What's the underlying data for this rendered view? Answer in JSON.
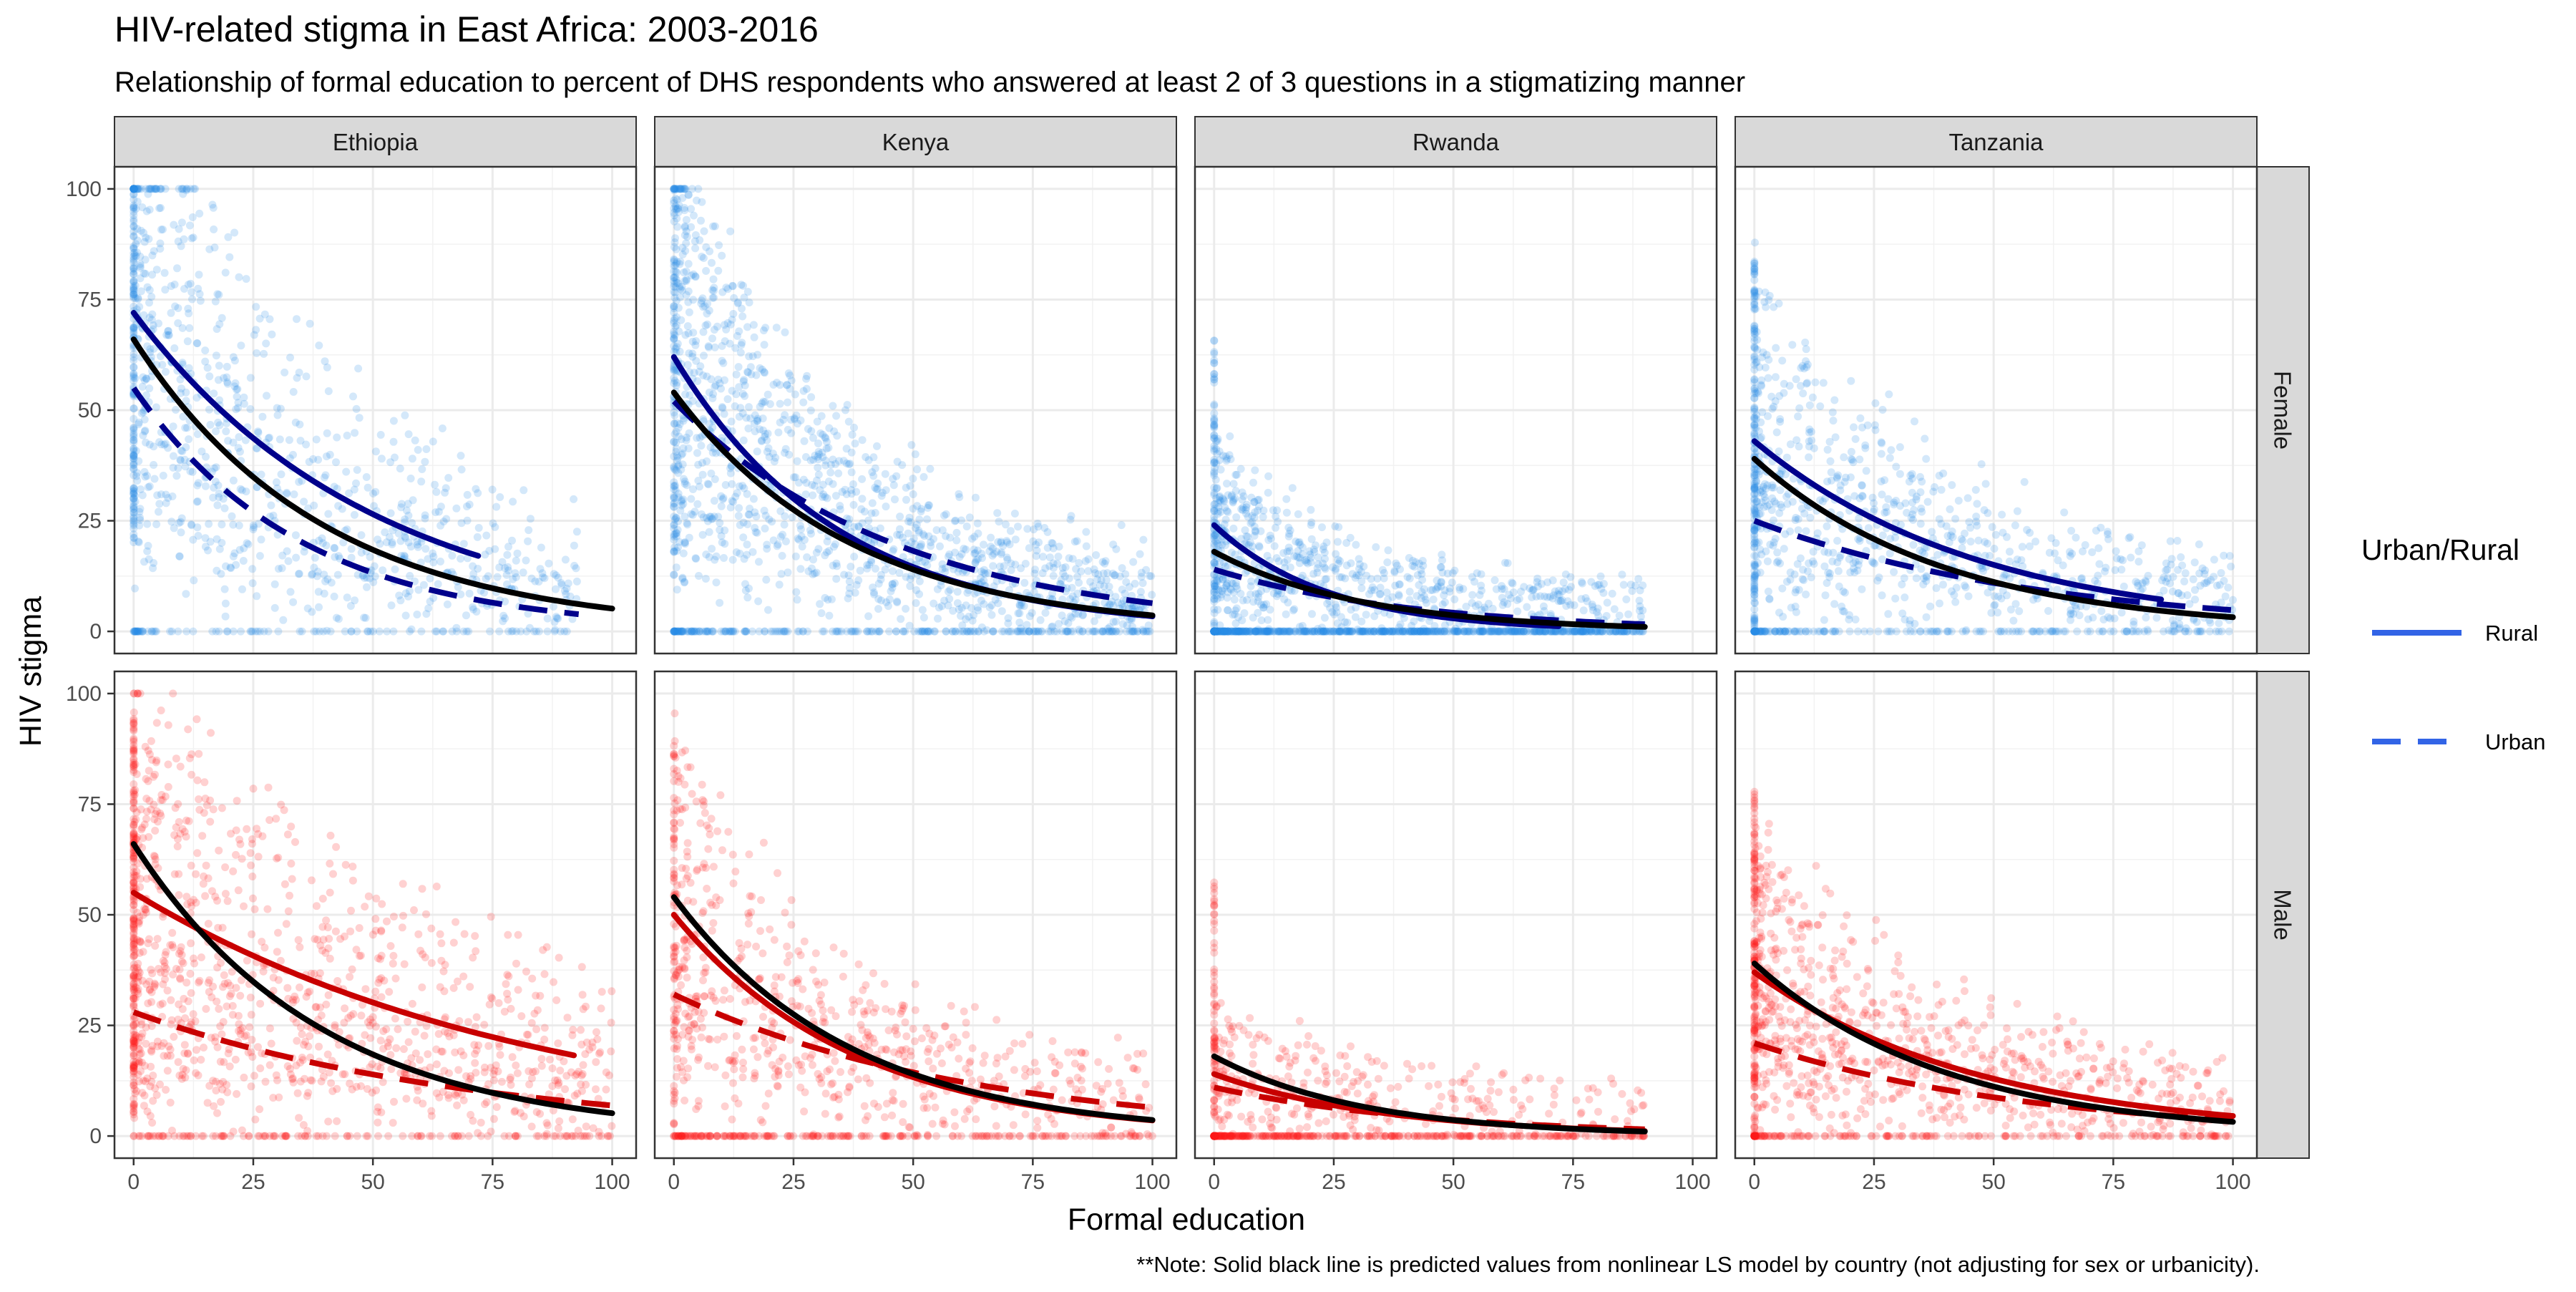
{
  "chart_data": {
    "type": "scatter",
    "title": "HIV-related stigma in East Africa: 2003-2016",
    "subtitle": "Relationship of formal education to percent of DHS respondents who answered at least 2 of 3 questions in a stigmatizing manner",
    "xlabel": "Formal education",
    "ylabel": "HIV stigma",
    "caption": "**Note: Solid black line is predicted values from nonlinear LS model by country (not adjusting for sex or urbanicity).",
    "xlim": [
      -4,
      105
    ],
    "ylim": [
      -5,
      105
    ],
    "x_ticks": [
      0,
      25,
      50,
      75,
      100
    ],
    "y_ticks": [
      0,
      25,
      50,
      75,
      100
    ],
    "grid": true,
    "columns": [
      "Ethiopia",
      "Kenya",
      "Rwanda",
      "Tanzania"
    ],
    "rows": [
      "Female",
      "Male"
    ],
    "legend": {
      "title": "Urban/Rural",
      "placement": "right",
      "entries": [
        {
          "label": "Rural",
          "linetype": "solid"
        },
        {
          "label": "Urban",
          "linetype": "dashed"
        }
      ]
    },
    "colors": {
      "female_points": "#2a8be8",
      "male_points": "#ff1a1a",
      "female_fit": "#00008b",
      "male_fit": "#c80000",
      "overall_fit": "#000000",
      "legend_line": "#3264e6",
      "strip_fill": "#d9d9d9",
      "grid": "#ebebeb",
      "border": "#333333"
    },
    "points_note": "Each dot is a survey cluster; dots are drawn in semi-transparent color and cluster heavily at education = 0 and stigma = 0.",
    "fitted_curves": {
      "Ethiopia": {
        "overall": {
          "a": 66,
          "b": 0.0255,
          "xmax": 100
        },
        "Female": {
          "Rural": {
            "a": 72,
            "b": 0.02,
            "xmax": 72
          },
          "Urban": {
            "a": 55,
            "b": 0.0285,
            "xmax": 93
          }
        },
        "Male": {
          "Rural": {
            "a": 55,
            "b": 0.012,
            "xmax": 92
          },
          "Urban": {
            "a": 28,
            "b": 0.014,
            "xmax": 100
          }
        }
      },
      "Kenya": {
        "overall": {
          "a": 54,
          "b": 0.027,
          "xmax": 100
        },
        "Female": {
          "Rural": {
            "a": 62,
            "b": 0.029,
            "xmax": 100
          },
          "Urban": {
            "a": 52,
            "b": 0.021,
            "xmax": 100
          }
        },
        "Male": {
          "Rural": {
            "a": 50,
            "b": 0.0265,
            "xmax": 100
          },
          "Urban": {
            "a": 32,
            "b": 0.016,
            "xmax": 100
          }
        }
      },
      "Rwanda": {
        "overall": {
          "a": 18,
          "b": 0.032,
          "xmax": 90
        },
        "Female": {
          "Rural": {
            "a": 24,
            "b": 0.042,
            "xmax": 72
          },
          "Urban": {
            "a": 14,
            "b": 0.024,
            "xmax": 90
          }
        },
        "Male": {
          "Rural": {
            "a": 14,
            "b": 0.028,
            "xmax": 90
          },
          "Urban": {
            "a": 11,
            "b": 0.022,
            "xmax": 90
          }
        }
      },
      "Tanzania": {
        "overall": {
          "a": 39,
          "b": 0.025,
          "xmax": 100
        },
        "Female": {
          "Rural": {
            "a": 43,
            "b": 0.021,
            "xmax": 85
          },
          "Urban": {
            "a": 25,
            "b": 0.0165,
            "xmax": 100
          }
        },
        "Male": {
          "Rural": {
            "a": 37,
            "b": 0.021,
            "xmax": 100
          },
          "Urban": {
            "a": 21,
            "b": 0.0175,
            "xmax": 100
          }
        }
      }
    },
    "point_clouds": {
      "Ethiopia": {
        "Female": {
          "n": 1100,
          "zero_x_share": 0.12,
          "zero_y_share": 0.08
        },
        "Male": {
          "n": 1300,
          "zero_x_share": 0.12,
          "zero_y_share": 0.1
        }
      },
      "Kenya": {
        "Female": {
          "n": 1600,
          "zero_x_share": 0.04,
          "zero_y_share": 0.12
        },
        "Male": {
          "n": 900,
          "zero_x_share": 0.05,
          "zero_y_share": 0.22
        }
      },
      "Rwanda": {
        "Female": {
          "n": 1400,
          "zero_x_share": 0.07,
          "zero_y_share": 0.35
        },
        "Male": {
          "n": 700,
          "zero_x_share": 0.1,
          "zero_y_share": 0.45
        }
      },
      "Tanzania": {
        "Female": {
          "n": 1100,
          "zero_x_share": 0.12,
          "zero_y_share": 0.15
        },
        "Male": {
          "n": 1100,
          "zero_x_share": 0.12,
          "zero_y_share": 0.12
        }
      }
    }
  }
}
